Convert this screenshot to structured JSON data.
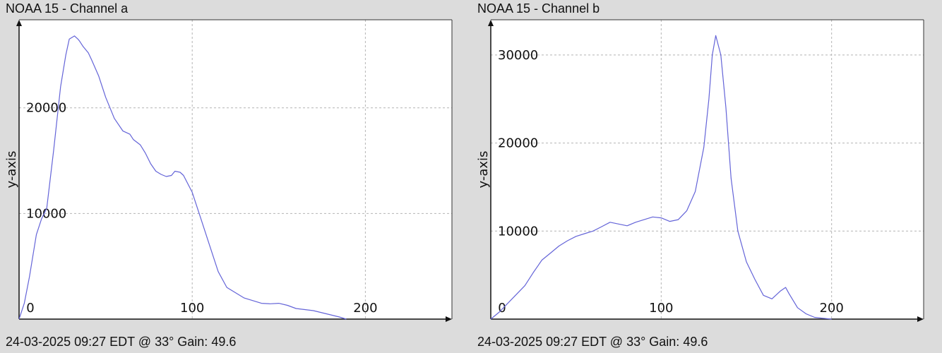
{
  "chart_data": [
    {
      "type": "line",
      "title": "NOAA 15 - Channel a",
      "footer": "24-03-2025 09:27 EDT @ 33° Gain: 49.6",
      "xlabel": "",
      "ylabel": "y-axis",
      "xlim": [
        0,
        250
      ],
      "ylim": [
        0,
        28333
      ],
      "xticks": [
        0,
        100,
        200
      ],
      "yticks": [
        10000,
        20000
      ],
      "grid": true,
      "line_color": "#6464d8",
      "series": [
        {
          "x": [
            0,
            3,
            6,
            8,
            10,
            13,
            16,
            20,
            24,
            27,
            29,
            32,
            34,
            35,
            37,
            40,
            42,
            46,
            50,
            55,
            60,
            64,
            66,
            70,
            73,
            76,
            79,
            82,
            85,
            88,
            90,
            93,
            95,
            100,
            105,
            110,
            115,
            120,
            125,
            130,
            140,
            145,
            150,
            155,
            160,
            165,
            170,
            175,
            180,
            185,
            189
          ],
          "y": [
            0,
            1500,
            4000,
            6000,
            8000,
            9500,
            10500,
            16000,
            22000,
            25000,
            26500,
            26800,
            26500,
            26300,
            25800,
            25200,
            24500,
            23000,
            21000,
            19000,
            17800,
            17500,
            17000,
            16500,
            15700,
            14700,
            14000,
            13700,
            13500,
            13600,
            14000,
            13900,
            13600,
            12000,
            9500,
            7000,
            4500,
            3000,
            2500,
            2000,
            1500,
            1450,
            1500,
            1300,
            1000,
            900,
            800,
            600,
            400,
            200,
            0
          ]
        }
      ]
    },
    {
      "type": "line",
      "title": "NOAA 15 - Channel b",
      "footer": "24-03-2025 09:27 EDT @ 33° Gain: 49.6",
      "xlabel": "",
      "ylabel": "y-axis",
      "xlim": [
        0,
        254
      ],
      "ylim": [
        0,
        34000
      ],
      "xticks": [
        0,
        100,
        200
      ],
      "yticks": [
        10000,
        20000,
        30000
      ],
      "grid": true,
      "line_color": "#6464d8",
      "series": [
        {
          "x": [
            0,
            5,
            10,
            15,
            20,
            25,
            30,
            35,
            40,
            45,
            50,
            55,
            60,
            65,
            70,
            75,
            80,
            85,
            90,
            95,
            100,
            105,
            110,
            115,
            120,
            125,
            128,
            130,
            132,
            135,
            138,
            141,
            145,
            150,
            155,
            160,
            165,
            170,
            173,
            175,
            180,
            185,
            190,
            195,
            200
          ],
          "y": [
            0,
            800,
            1800,
            2800,
            3800,
            5300,
            6700,
            7500,
            8300,
            8900,
            9400,
            9700,
            10000,
            10500,
            11000,
            10800,
            10600,
            11000,
            11300,
            11600,
            11500,
            11100,
            11300,
            12300,
            14500,
            19500,
            25000,
            30000,
            32200,
            30000,
            24000,
            16000,
            10000,
            6500,
            4500,
            2700,
            2300,
            3200,
            3600,
            2900,
            1300,
            600,
            200,
            100,
            0
          ]
        }
      ]
    }
  ]
}
